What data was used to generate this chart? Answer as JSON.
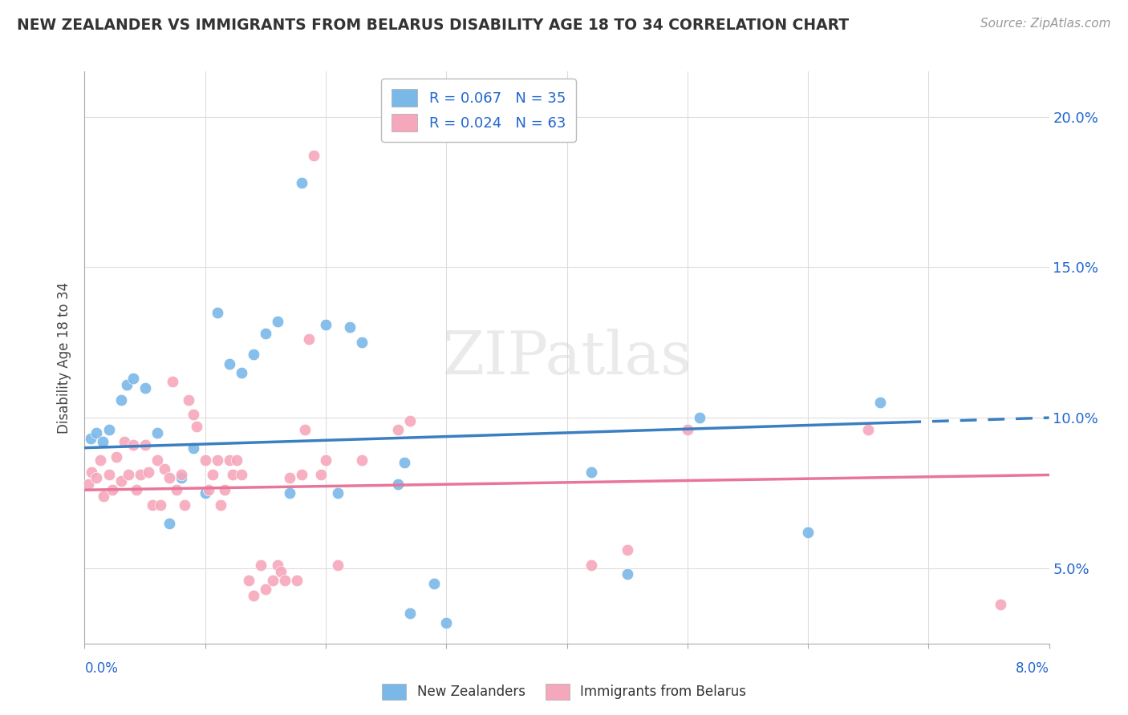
{
  "title": "NEW ZEALANDER VS IMMIGRANTS FROM BELARUS DISABILITY AGE 18 TO 34 CORRELATION CHART",
  "source": "Source: ZipAtlas.com",
  "ylabel": "Disability Age 18 to 34",
  "ytick_values": [
    5.0,
    10.0,
    15.0,
    20.0
  ],
  "x_min": 0.0,
  "x_max": 8.0,
  "y_min": 2.5,
  "y_max": 21.5,
  "nz_R": 0.067,
  "nz_N": 35,
  "imm_R": 0.024,
  "imm_N": 63,
  "nz_color": "#7ab8e8",
  "imm_color": "#f5a8bc",
  "nz_line_color": "#3a7fc1",
  "imm_line_color": "#e8759a",
  "legend_text_color": "#2266cc",
  "background_color": "#ffffff",
  "grid_color": "#dddddd",
  "watermark": "ZIPatlas",
  "nz_line_x0": 0.0,
  "nz_line_y0": 9.0,
  "nz_line_x1": 8.0,
  "nz_line_y1": 10.0,
  "nz_dash_start": 6.8,
  "imm_line_x0": 0.0,
  "imm_line_y0": 7.6,
  "imm_line_x1": 8.0,
  "imm_line_y1": 8.1,
  "nz_points_x": [
    0.05,
    0.1,
    0.15,
    0.2,
    0.3,
    0.35,
    0.4,
    0.5,
    0.6,
    0.7,
    0.8,
    0.9,
    1.0,
    1.1,
    1.2,
    1.3,
    1.4,
    1.5,
    1.6,
    1.7,
    1.8,
    2.0,
    2.1,
    2.2,
    2.3,
    2.6,
    2.65,
    2.7,
    2.9,
    3.0,
    4.2,
    4.5,
    5.1,
    6.0,
    6.6
  ],
  "nz_points_y": [
    9.3,
    9.5,
    9.2,
    9.6,
    10.6,
    11.1,
    11.3,
    11.0,
    9.5,
    6.5,
    8.0,
    9.0,
    7.5,
    13.5,
    11.8,
    11.5,
    12.1,
    12.8,
    13.2,
    7.5,
    17.8,
    13.1,
    7.5,
    13.0,
    12.5,
    7.8,
    8.5,
    3.5,
    4.5,
    3.2,
    8.2,
    4.8,
    10.0,
    6.2,
    10.5
  ],
  "imm_points_x": [
    0.03,
    0.06,
    0.1,
    0.13,
    0.16,
    0.2,
    0.23,
    0.26,
    0.3,
    0.33,
    0.36,
    0.4,
    0.43,
    0.46,
    0.5,
    0.53,
    0.56,
    0.6,
    0.63,
    0.66,
    0.7,
    0.73,
    0.76,
    0.8,
    0.83,
    0.86,
    0.9,
    0.93,
    1.0,
    1.03,
    1.06,
    1.1,
    1.13,
    1.16,
    1.2,
    1.23,
    1.26,
    1.3,
    1.36,
    1.4,
    1.46,
    1.5,
    1.56,
    1.6,
    1.63,
    1.66,
    1.7,
    1.76,
    1.8,
    1.83,
    1.86,
    1.9,
    1.96,
    2.0,
    2.1,
    2.3,
    2.6,
    2.7,
    4.2,
    4.5,
    5.0,
    6.5,
    7.6
  ],
  "imm_points_y": [
    7.8,
    8.2,
    8.0,
    8.6,
    7.4,
    8.1,
    7.6,
    8.7,
    7.9,
    9.2,
    8.1,
    9.1,
    7.6,
    8.1,
    9.1,
    8.2,
    7.1,
    8.6,
    7.1,
    8.3,
    8.0,
    11.2,
    7.6,
    8.1,
    7.1,
    10.6,
    10.1,
    9.7,
    8.6,
    7.6,
    8.1,
    8.6,
    7.1,
    7.6,
    8.6,
    8.1,
    8.6,
    8.1,
    4.6,
    4.1,
    5.1,
    4.3,
    4.6,
    5.1,
    4.9,
    4.6,
    8.0,
    4.6,
    8.1,
    9.6,
    12.6,
    18.7,
    8.1,
    8.6,
    5.1,
    8.6,
    9.6,
    9.9,
    5.1,
    5.6,
    9.6,
    9.6,
    3.8
  ]
}
